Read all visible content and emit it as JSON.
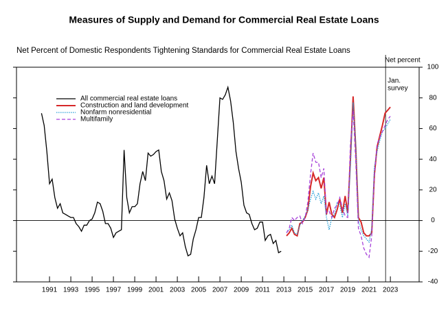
{
  "chart_data": {
    "type": "line",
    "title": "Measures of Supply and Demand for Commercial Real Estate Loans",
    "subtitle": "Net Percent of Domestic Respondents Tightening Standards for Commercial Real Estate Loans",
    "y_axis_label": "Net percent",
    "annotations": [
      {
        "x": 2023.05,
        "lines": [
          "Jan.",
          "survey"
        ]
      }
    ],
    "xlim": [
      1988.4,
      2026.2
    ],
    "xticks": [
      {
        "value": 1991.5,
        "label": "1991"
      },
      {
        "value": 1993.5,
        "label": "1993"
      },
      {
        "value": 1995.5,
        "label": "1995"
      },
      {
        "value": 1997.5,
        "label": "1997"
      },
      {
        "value": 1999.5,
        "label": "1999"
      },
      {
        "value": 2001.5,
        "label": "2001"
      },
      {
        "value": 2003.5,
        "label": "2003"
      },
      {
        "value": 2005.5,
        "label": "2005"
      },
      {
        "value": 2007.5,
        "label": "2007"
      },
      {
        "value": 2009.5,
        "label": "2009"
      },
      {
        "value": 2011.5,
        "label": "2011"
      },
      {
        "value": 2013.5,
        "label": "2013"
      },
      {
        "value": 2015.5,
        "label": "2015"
      },
      {
        "value": 2017.5,
        "label": "2017"
      },
      {
        "value": 2019.5,
        "label": "2019"
      },
      {
        "value": 2021.5,
        "label": "2021"
      },
      {
        "value": 2023.5,
        "label": "2023"
      }
    ],
    "ylim": [
      -40,
      100
    ],
    "yticks": [
      -40,
      -20,
      0,
      20,
      40,
      60,
      80,
      100
    ],
    "legend": "upper left",
    "series": [
      {
        "name": "All commercial real estate loans",
        "color": "#000000",
        "dash": "solid",
        "x": [
          1990.75,
          1991,
          1991.25,
          1991.5,
          1991.75,
          1992,
          1992.25,
          1992.5,
          1992.75,
          1993,
          1993.25,
          1993.5,
          1993.75,
          1994,
          1994.25,
          1994.5,
          1994.75,
          1995,
          1995.25,
          1995.5,
          1995.75,
          1996,
          1996.25,
          1996.5,
          1996.75,
          1997,
          1997.25,
          1997.5,
          1997.75,
          1998,
          1998.25,
          1998.5,
          1998.75,
          1999,
          1999.25,
          1999.5,
          1999.75,
          2000,
          2000.25,
          2000.5,
          2000.75,
          2001,
          2001.25,
          2001.5,
          2001.75,
          2002,
          2002.25,
          2002.5,
          2002.75,
          2003,
          2003.25,
          2003.5,
          2003.75,
          2004,
          2004.25,
          2004.5,
          2004.75,
          2005,
          2005.25,
          2005.5,
          2005.75,
          2006,
          2006.25,
          2006.5,
          2006.75,
          2007,
          2007.25,
          2007.5,
          2007.75,
          2008,
          2008.25,
          2008.5,
          2008.75,
          2009,
          2009.25,
          2009.5,
          2009.75,
          2010,
          2010.25,
          2010.5,
          2010.75,
          2011,
          2011.25,
          2011.5,
          2011.75,
          2012,
          2012.25,
          2012.5,
          2012.75,
          2013,
          2013.25
        ],
        "values": [
          70,
          62,
          45,
          24,
          27,
          15,
          8,
          11,
          5,
          4,
          3,
          2,
          2,
          -2,
          -4,
          -7,
          -3,
          -3,
          0,
          1,
          5,
          12,
          11,
          6,
          -2,
          -2,
          -5,
          -11,
          -8,
          -7,
          -6,
          46,
          15,
          5,
          9,
          9,
          11,
          24,
          32,
          26,
          44,
          42,
          43,
          45,
          46,
          32,
          26,
          14,
          18,
          13,
          1,
          -5,
          -10,
          -8,
          -17,
          -23,
          -22,
          -12,
          -6,
          2,
          2,
          15,
          36,
          24,
          29,
          24,
          52,
          80,
          79,
          82,
          87,
          78,
          64,
          45,
          34,
          25,
          10,
          5,
          4,
          -2,
          -6,
          -5,
          -1,
          -1,
          -13,
          -10,
          -9,
          -15,
          -13,
          -21,
          -20
        ]
      },
      {
        "name": "Construction and land development",
        "color": "#d62728",
        "dash": "solid",
        "x": [
          2013.75,
          2014,
          2014.25,
          2014.5,
          2014.75,
          2015,
          2015.25,
          2015.5,
          2015.75,
          2016,
          2016.25,
          2016.5,
          2016.75,
          2017,
          2017.25,
          2017.5,
          2017.75,
          2018,
          2018.25,
          2018.5,
          2018.75,
          2019,
          2019.25,
          2019.5,
          2019.75,
          2020,
          2020.25,
          2020.5,
          2020.75,
          2021,
          2021.25,
          2021.5,
          2021.75,
          2022,
          2022.25,
          2022.5,
          2022.75,
          2023,
          2023.25,
          2023.5
        ],
        "values": [
          -10,
          -8,
          -5,
          -9,
          -10,
          -2,
          -1,
          2,
          7,
          22,
          31,
          26,
          28,
          21,
          28,
          4,
          12,
          4,
          2,
          7,
          14,
          5,
          16,
          5,
          40,
          81,
          47,
          2,
          -1,
          -8,
          -10,
          -10,
          -8,
          30,
          48,
          55,
          62,
          70,
          72,
          74
        ]
      },
      {
        "name": "Nonfarm nonresidential",
        "color": "#1f9bd6",
        "dash": "dotted",
        "x": [
          2013.75,
          2014,
          2014.25,
          2014.5,
          2014.75,
          2015,
          2015.25,
          2015.5,
          2015.75,
          2016,
          2016.25,
          2016.5,
          2016.75,
          2017,
          2017.25,
          2017.5,
          2017.75,
          2018,
          2018.25,
          2018.5,
          2018.75,
          2019,
          2019.25,
          2019.5,
          2019.75,
          2020,
          2020.25,
          2020.5,
          2020.75,
          2021,
          2021.25,
          2021.5,
          2021.75,
          2022,
          2022.25,
          2022.5,
          2022.75,
          2023,
          2023.25,
          2023.5
        ],
        "values": [
          -8,
          -6,
          -3,
          -8,
          -9,
          -3,
          0,
          3,
          7,
          14,
          19,
          14,
          18,
          11,
          16,
          2,
          -6,
          2,
          4,
          12,
          10,
          2,
          11,
          3,
          35,
          77,
          50,
          0,
          -6,
          -10,
          -12,
          -14,
          -5,
          35,
          45,
          52,
          58,
          60,
          63,
          66
        ]
      },
      {
        "name": "Multifamily",
        "color": "#a63fd9",
        "dash": "dashed",
        "x": [
          2013.75,
          2014,
          2014.25,
          2014.5,
          2014.75,
          2015,
          2015.25,
          2015.5,
          2015.75,
          2016,
          2016.25,
          2016.5,
          2016.75,
          2017,
          2017.25,
          2017.5,
          2017.75,
          2018,
          2018.25,
          2018.5,
          2018.75,
          2019,
          2019.25,
          2019.5,
          2019.75,
          2020,
          2020.25,
          2020.5,
          2020.75,
          2021,
          2021.25,
          2021.5,
          2021.75,
          2022,
          2022.25,
          2022.5,
          2022.75,
          2023,
          2023.25,
          2023.5
        ],
        "values": [
          -8,
          -5,
          2,
          0,
          2,
          3,
          -2,
          2,
          12,
          30,
          44,
          38,
          38,
          28,
          34,
          5,
          6,
          2,
          8,
          10,
          15,
          8,
          3,
          2,
          50,
          72,
          38,
          -5,
          -10,
          -18,
          -22,
          -24,
          -10,
          30,
          50,
          54,
          58,
          62,
          66,
          68
        ]
      }
    ]
  }
}
